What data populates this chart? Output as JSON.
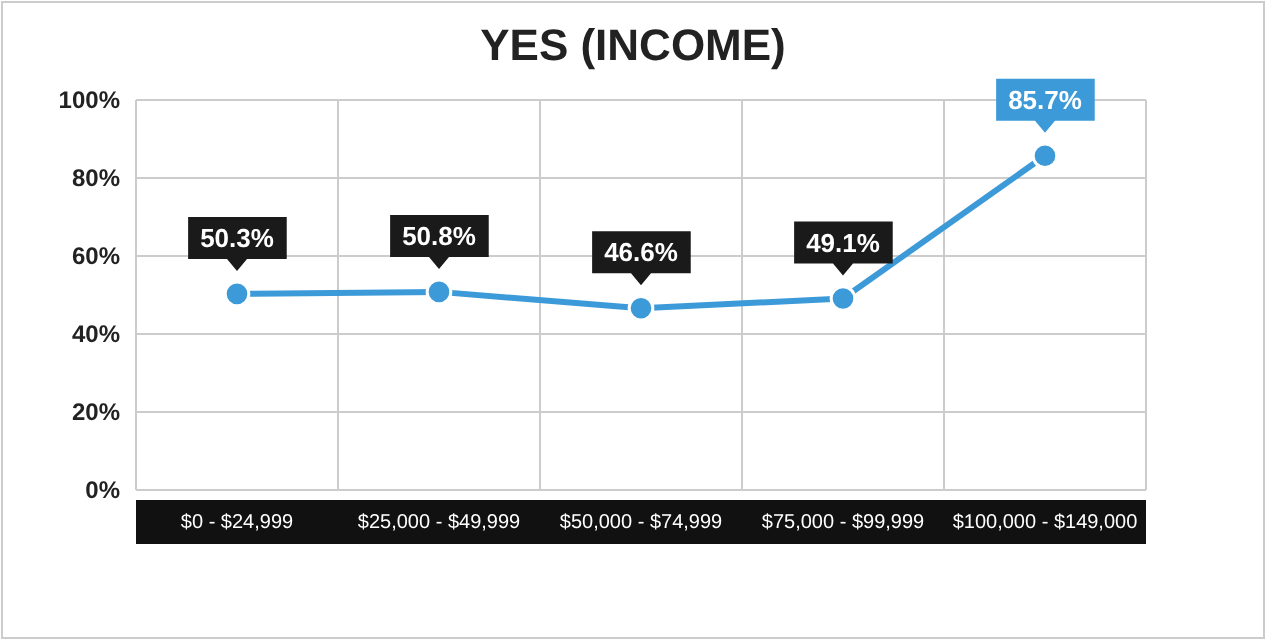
{
  "chart_data": {
    "type": "line",
    "title": "YES (INCOME)",
    "categories": [
      "$0 - $24,999",
      "$25,000 - $49,999",
      "$50,000 - $74,999",
      "$75,000 - $99,999",
      "$100,000 - $149,000"
    ],
    "series": [
      {
        "color": "#3d9ad8",
        "values": [
          50.3,
          50.8,
          46.6,
          49.1,
          85.7
        ],
        "value_labels": [
          "50.3%",
          "50.8%",
          "46.6%",
          "49.1%",
          "85.7%"
        ]
      }
    ],
    "ylim": [
      0,
      100
    ],
    "yticks": [
      {
        "value": 0,
        "label": "0%"
      },
      {
        "value": 20,
        "label": "20%"
      },
      {
        "value": 40,
        "label": "40%"
      },
      {
        "value": 60,
        "label": "60%"
      },
      {
        "value": 80,
        "label": "80%"
      },
      {
        "value": 100,
        "label": "100%"
      }
    ],
    "grid": true,
    "marker": "circle",
    "line_style": "solid"
  }
}
